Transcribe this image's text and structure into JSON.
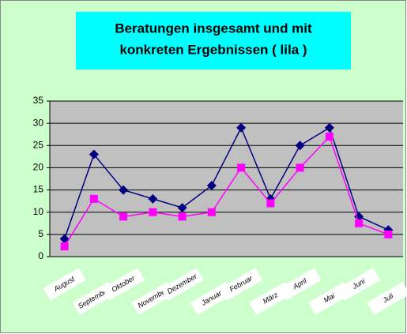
{
  "chart_data": {
    "type": "line",
    "title": [
      "Beratungen insgesamt und mit",
      "konkreten Ergebnissen ( lila )"
    ],
    "categories": [
      "August",
      "September",
      "Oktober",
      "November",
      "Dezember",
      "Januar",
      "Februar",
      "März",
      "April",
      "Mai",
      "Juni",
      "Juli"
    ],
    "series": [
      {
        "color": "#000080",
        "marker": "diamond",
        "values": [
          4,
          23,
          15,
          13,
          11,
          16,
          29,
          13,
          25,
          29,
          9,
          6
        ]
      },
      {
        "color": "#ff00ff",
        "marker": "square",
        "values": [
          2.3,
          13,
          9,
          10,
          9,
          10,
          20,
          12,
          20,
          27,
          7.5,
          5
        ]
      }
    ],
    "ylim": [
      0,
      35
    ],
    "yticks": [
      0,
      5,
      10,
      15,
      20,
      25,
      30,
      35
    ],
    "grid": true
  }
}
